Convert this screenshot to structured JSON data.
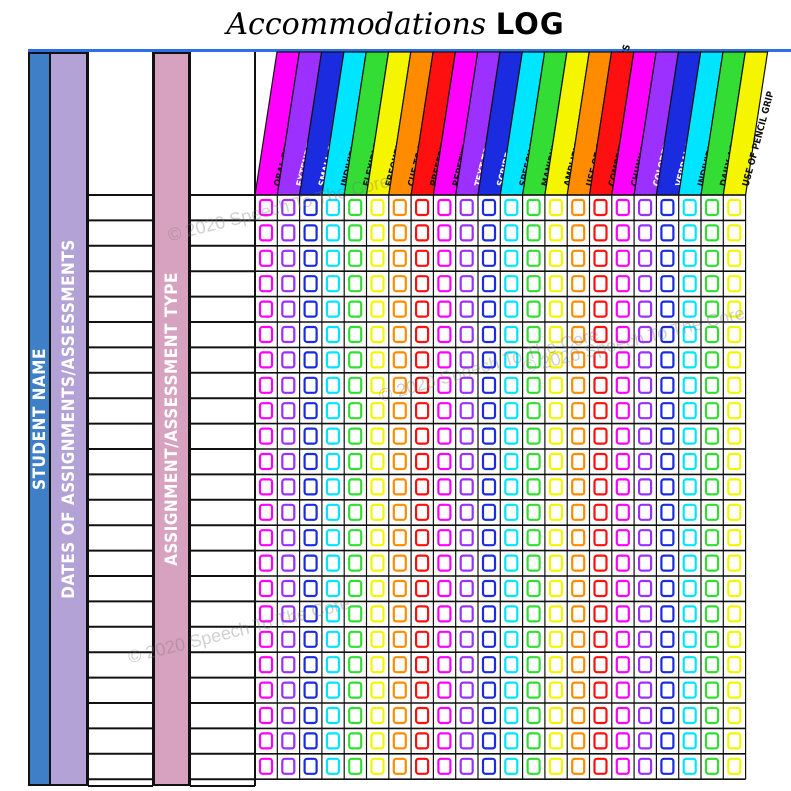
{
  "title": {
    "part1": "Accommodations",
    "part2": "LOG"
  },
  "left_columns": {
    "student_name": "Student Name",
    "dates": "Dates of Assignments/Assessments",
    "assignment_type": "Assignment/Assessment Type"
  },
  "accommodations": [
    {
      "label": "Oral Presentation",
      "color": "#ff00ff"
    },
    {
      "label": "Extended Time",
      "color": "#9b30ff"
    },
    {
      "label": "Small Group Setting",
      "color": "#1a2be0"
    },
    {
      "label": "Individual Setting",
      "color": "#00e5ff"
    },
    {
      "label": "Flexible Scheduling",
      "color": "#33dd33"
    },
    {
      "label": "Frequent Breaks",
      "color": "#f5f500"
    },
    {
      "label": "Cue to Remain on Task",
      "color": "#ff8c00"
    },
    {
      "label": "Preferential Seating",
      "color": "#ff1010"
    },
    {
      "label": "Repetition of Directions",
      "color": "#ff00ff"
    },
    {
      "label": "Text to Speech",
      "color": "#9b30ff"
    },
    {
      "label": "Scribe",
      "color": "#1a2be0"
    },
    {
      "label": "Speech to Text",
      "color": "#00e5ff"
    },
    {
      "label": "Manipulatives",
      "color": "#33dd33"
    },
    {
      "label": "Amplification Systems",
      "color": "#f5f500"
    },
    {
      "label": "Use of Graphic Organizers",
      "color": "#ff8c00"
    },
    {
      "label": "Comprehension Checks",
      "color": "#ff1010"
    },
    {
      "label": "Chunk Information",
      "color": "#ff00ff"
    },
    {
      "label": "Colored Overlays",
      "color": "#9b30ff"
    },
    {
      "label": "Verbal Encouragement",
      "color": "#1a2be0"
    },
    {
      "label": "Individual Behavior Plan",
      "color": "#00e5ff"
    },
    {
      "label": "Daily Agenda Check",
      "color": "#33dd33"
    },
    {
      "label": "Use of Pencil Grip",
      "color": "#f5f500"
    }
  ],
  "watermarks": [
    "© 2020 Speech To The Core",
    "© 2020 Speech To The Core",
    "© 2020 Speech To The Core",
    "© 2020 Speech To The Core"
  ]
}
